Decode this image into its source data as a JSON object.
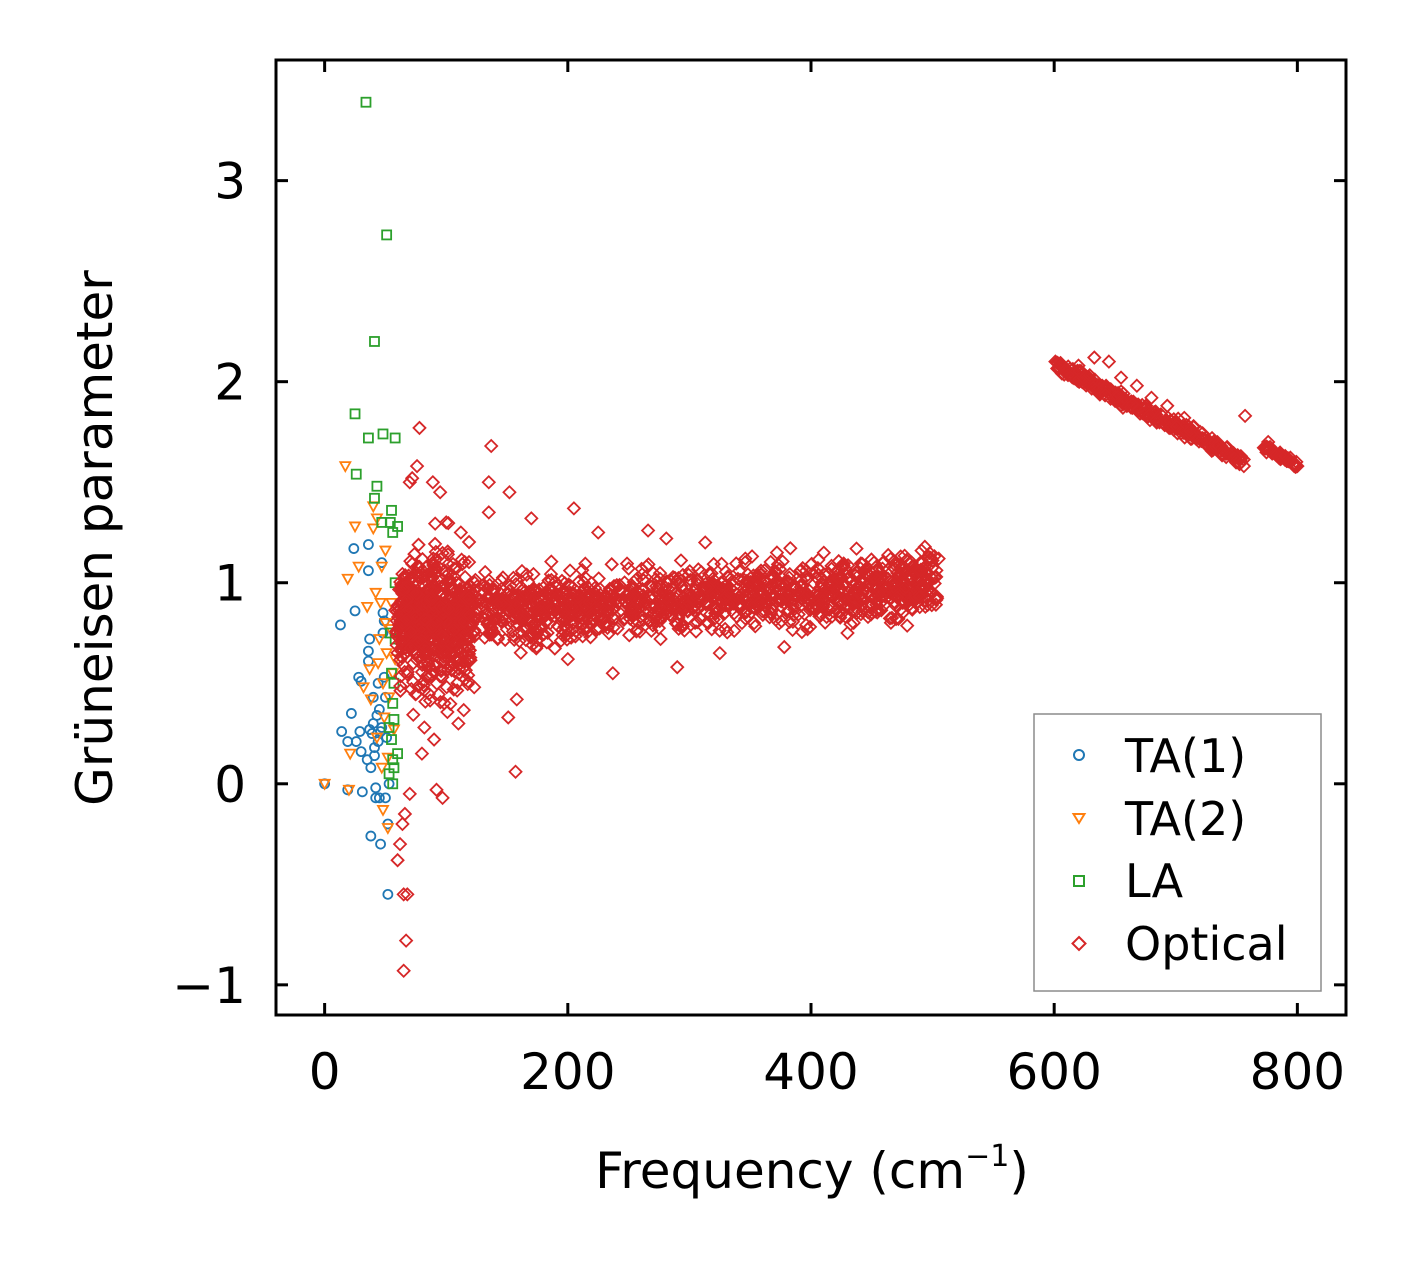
{
  "chart_data": {
    "type": "scatter",
    "title": "",
    "xlabel": "Frequency (cm",
    "xlabel_exponent": "−1",
    "xlabel_suffix": ")",
    "ylabel": "Grüneisen parameter",
    "xlim": [
      -40,
      840
    ],
    "ylim": [
      -1.15,
      3.6
    ],
    "x_ticks": [
      0,
      200,
      400,
      600,
      800
    ],
    "x_tick_labels": [
      "0",
      "200",
      "400",
      "600",
      "800"
    ],
    "y_ticks": [
      -1,
      0,
      1,
      2,
      3
    ],
    "y_tick_labels": [
      "−1",
      "0",
      "1",
      "2",
      "3"
    ],
    "grid": false,
    "legend_position": "bottom-right",
    "series": [
      {
        "name": "TA(1)",
        "marker": "circle",
        "color": "#1f77b4",
        "points": [
          [
            0,
            0.0
          ],
          [
            13,
            0.79
          ],
          [
            14,
            0.26
          ],
          [
            19,
            -0.03
          ],
          [
            19,
            0.21
          ],
          [
            22,
            0.35
          ],
          [
            24,
            1.17
          ],
          [
            25,
            0.86
          ],
          [
            26,
            0.21
          ],
          [
            28,
            0.53
          ],
          [
            29,
            0.26
          ],
          [
            30,
            0.16
          ],
          [
            30,
            0.51
          ],
          [
            31,
            -0.04
          ],
          [
            35,
            0.12
          ],
          [
            36,
            1.19
          ],
          [
            36,
            1.06
          ],
          [
            36,
            0.61
          ],
          [
            36,
            0.66
          ],
          [
            37,
            0.72
          ],
          [
            37,
            0.27
          ],
          [
            38,
            -0.26
          ],
          [
            38,
            0.08
          ],
          [
            39,
            0.25
          ],
          [
            40,
            0.43
          ],
          [
            40,
            0.3
          ],
          [
            41,
            0.14
          ],
          [
            41,
            0.18
          ],
          [
            42,
            -0.07
          ],
          [
            42,
            -0.02
          ],
          [
            43,
            0.34
          ],
          [
            44,
            0.21
          ],
          [
            44,
            0.5
          ],
          [
            45,
            0.37
          ],
          [
            45,
            -0.07
          ],
          [
            46,
            -0.3
          ],
          [
            46,
            0.26
          ],
          [
            47,
            1.1
          ],
          [
            47,
            0.28
          ],
          [
            48,
            0.75
          ],
          [
            48,
            0.85
          ],
          [
            49,
            0.81
          ],
          [
            49,
            0.53
          ],
          [
            50,
            -0.07
          ],
          [
            50,
            0.43
          ],
          [
            51,
            0.23
          ],
          [
            52,
            -0.2
          ],
          [
            52,
            -0.55
          ],
          [
            53,
            0.0
          ]
        ]
      },
      {
        "name": "TA(2)",
        "marker": "triangle-down",
        "color": "#ff7f0e",
        "points": [
          [
            0,
            0.0
          ],
          [
            17,
            1.58
          ],
          [
            19,
            1.02
          ],
          [
            20,
            -0.03
          ],
          [
            21,
            0.15
          ],
          [
            25,
            1.28
          ],
          [
            28,
            1.08
          ],
          [
            32,
            0.48
          ],
          [
            35,
            0.88
          ],
          [
            37,
            0.57
          ],
          [
            38,
            0.42
          ],
          [
            40,
            1.38
          ],
          [
            40,
            1.27
          ],
          [
            42,
            0.95
          ],
          [
            43,
            1.32
          ],
          [
            43,
            0.23
          ],
          [
            44,
            0.6
          ],
          [
            45,
            0.72
          ],
          [
            46,
            0.9
          ],
          [
            47,
            1.08
          ],
          [
            47,
            0.08
          ],
          [
            48,
            0.5
          ],
          [
            48,
            -0.13
          ],
          [
            49,
            0.33
          ],
          [
            50,
            1.16
          ],
          [
            50,
            0.8
          ],
          [
            51,
            0.65
          ],
          [
            52,
            0.13
          ],
          [
            52,
            -0.22
          ],
          [
            53,
            0.43
          ],
          [
            54,
            0.77
          ],
          [
            55,
            0.9
          ],
          [
            56,
            0.55
          ],
          [
            57,
            0.27
          ],
          [
            58,
            0.62
          ]
        ]
      },
      {
        "name": "LA",
        "marker": "square",
        "color": "#2ca02c",
        "points": [
          [
            34,
            3.39
          ],
          [
            51,
            2.73
          ],
          [
            41,
            2.2
          ],
          [
            25,
            1.84
          ],
          [
            48,
            1.74
          ],
          [
            58,
            1.72
          ],
          [
            36,
            1.72
          ],
          [
            26,
            1.54
          ],
          [
            43,
            1.48
          ],
          [
            41,
            1.42
          ],
          [
            55,
            1.36
          ],
          [
            54,
            1.3
          ],
          [
            47,
            1.3
          ],
          [
            60,
            1.28
          ],
          [
            56,
            1.25
          ],
          [
            58,
            1.0
          ],
          [
            54,
            0.75
          ],
          [
            58,
            0.72
          ],
          [
            55,
            0.55
          ],
          [
            57,
            0.5
          ],
          [
            56,
            0.4
          ],
          [
            57,
            0.32
          ],
          [
            53,
            0.28
          ],
          [
            55,
            0.22
          ],
          [
            56,
            0.12
          ],
          [
            57,
            0.08
          ],
          [
            53,
            0.05
          ],
          [
            56,
            0.0
          ],
          [
            60,
            0.15
          ]
        ]
      },
      {
        "name": "Optical",
        "marker": "diamond",
        "color": "#d62728",
        "points": [
          [
            78,
            1.77
          ],
          [
            76,
            1.58
          ],
          [
            72,
            1.52
          ],
          [
            70,
            1.5
          ],
          [
            89,
            1.5
          ],
          [
            95,
            1.45
          ],
          [
            100,
            1.3
          ],
          [
            137,
            1.68
          ],
          [
            135,
            1.5
          ],
          [
            152,
            1.45
          ],
          [
            135,
            1.35
          ],
          [
            112,
            1.25
          ],
          [
            170,
            1.32
          ],
          [
            205,
            1.37
          ],
          [
            225,
            1.25
          ],
          [
            266,
            1.26
          ],
          [
            281,
            1.22
          ],
          [
            313,
            1.2
          ],
          [
            346,
            1.12
          ],
          [
            372,
            1.15
          ],
          [
            411,
            1.04
          ],
          [
            459,
            1.1
          ],
          [
            490,
            1.1
          ],
          [
            505,
            1.12
          ],
          [
            65,
            -0.55
          ],
          [
            67,
            -0.78
          ],
          [
            65,
            -0.93
          ],
          [
            68,
            -0.55
          ],
          [
            60,
            -0.38
          ],
          [
            62,
            -0.3
          ],
          [
            64,
            -0.2
          ],
          [
            66,
            -0.15
          ],
          [
            70,
            -0.05
          ],
          [
            92,
            -0.03
          ],
          [
            97,
            -0.07
          ],
          [
            157,
            0.06
          ],
          [
            80,
            0.15
          ],
          [
            82,
            0.28
          ],
          [
            90,
            0.22
          ],
          [
            110,
            0.3
          ],
          [
            123,
            0.48
          ],
          [
            151,
            0.33
          ],
          [
            158,
            0.42
          ],
          [
            200,
            0.62
          ],
          [
            237,
            0.55
          ],
          [
            290,
            0.58
          ],
          [
            325,
            0.65
          ],
          [
            378,
            0.68
          ],
          [
            430,
            0.75
          ],
          [
            470,
            0.82
          ],
          [
            500,
            0.95
          ],
          [
            601,
            2.1
          ],
          [
            620,
            2.08
          ],
          [
            633,
            2.12
          ],
          [
            645,
            2.1
          ],
          [
            655,
            2.02
          ],
          [
            668,
            1.98
          ],
          [
            680,
            1.92
          ],
          [
            693,
            1.88
          ],
          [
            707,
            1.82
          ],
          [
            720,
            1.75
          ],
          [
            735,
            1.68
          ],
          [
            748,
            1.62
          ],
          [
            757,
            1.83
          ],
          [
            756,
            1.58
          ],
          [
            776,
            1.7
          ],
          [
            790,
            1.63
          ],
          [
            800,
            1.58
          ]
        ],
        "bands": [
          {
            "x_start": 58,
            "x_end": 504,
            "y_center_start": 0.82,
            "y_center_end": 1.0,
            "thickness": 0.5,
            "density": 1500
          },
          {
            "x_start": 62,
            "x_end": 120,
            "y_center_start": 0.8,
            "y_center_end": 0.8,
            "thickness": 1.1,
            "density": 500
          },
          {
            "x_start": 602,
            "x_end": 758,
            "y_center_start": 2.08,
            "y_center_end": 1.6,
            "thickness": 0.1,
            "density": 320
          },
          {
            "x_start": 772,
            "x_end": 800,
            "y_center_start": 1.68,
            "y_center_end": 1.58,
            "thickness": 0.06,
            "density": 60
          }
        ]
      }
    ]
  }
}
